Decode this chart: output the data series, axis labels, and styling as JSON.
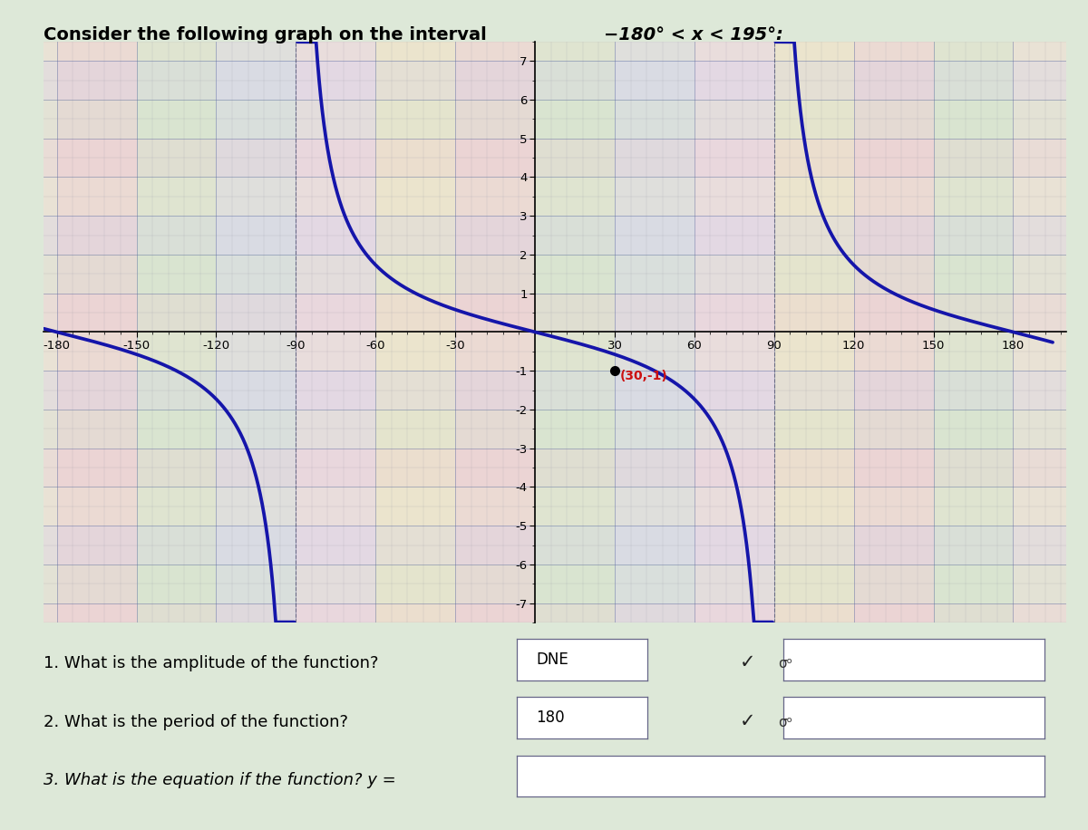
{
  "title_part1": "Consider the following graph on the interval ",
  "title_math": "−180° < x < 195°:",
  "curve_color": "#1515aa",
  "xlim": [
    -185,
    200
  ],
  "ylim": [
    -7.5,
    7.5
  ],
  "xtick_vals": [
    -180,
    -150,
    -120,
    -90,
    -60,
    -30,
    30,
    60,
    90,
    120,
    150,
    180
  ],
  "ytick_vals": [
    -7,
    -6,
    -5,
    -4,
    -3,
    -2,
    -1,
    1,
    2,
    3,
    4,
    5,
    6,
    7
  ],
  "point_x": 30,
  "point_y": -1,
  "point_label": "(30,-1)",
  "q1_text": "1. What is the amplitude of the function?",
  "a1_text": "DNE",
  "q2_text": "2. What is the period of the function?",
  "a2_text": "180",
  "q3_text": "3. What is the equation if the function? y =",
  "check_symbol": "✓",
  "sigma_symbol": "σᵒ"
}
